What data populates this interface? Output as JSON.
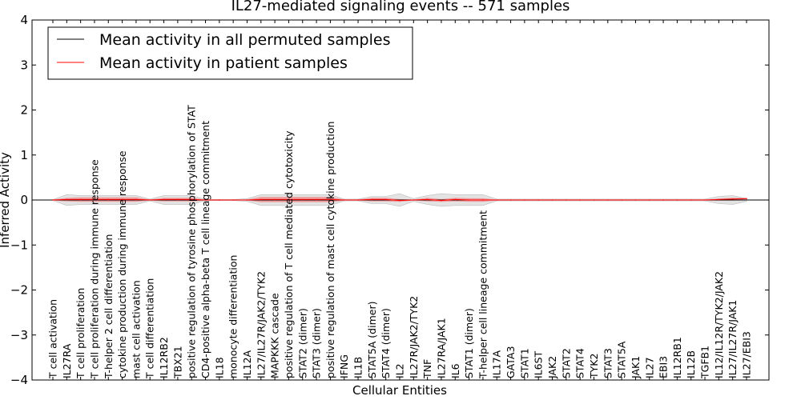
{
  "chart_data": {
    "type": "line",
    "title": "IL27-mediated signaling events -- 571 samples",
    "xlabel": "Cellular Entities",
    "ylabel": "Inferred Activity",
    "ylim": [
      -4,
      4
    ],
    "yticks": [
      -4,
      -3,
      -2,
      -1,
      0,
      1,
      2,
      3,
      4
    ],
    "ytick_labels": [
      "−4",
      "−3",
      "−2",
      "−1",
      "0",
      "1",
      "2",
      "3",
      "4"
    ],
    "legend": {
      "location": "top-left",
      "entries": [
        {
          "label": "Mean activity in all permuted samples",
          "color": "#000000"
        },
        {
          "label": "Mean activity in patient samples",
          "color": "#ff0000"
        }
      ]
    },
    "categories": [
      "T cell activation",
      "IL27RA",
      "T cell proliferation",
      "T cell proliferation during immune response",
      "T-helper 2 cell differentiation",
      "cytokine production during immune response",
      "mast cell activation",
      "T cell differentiation",
      "IL12RB2",
      "TBX21",
      "positive regulation of tyrosine phosphorylation of STAT",
      "CD4-positive alpha-beta T cell lineage commitment",
      "IL18",
      "monocyte differentiation",
      "IL12A",
      "IL27/IL27R/JAK2/TYK2",
      "MAPKKK cascade",
      "positive regulation of T cell mediated cytotoxicity",
      "STAT2 (dimer)",
      "STAT3 (dimer)",
      "positive regulation of mast cell cytokine production",
      "IFNG",
      "IL1B",
      "STAT5A (dimer)",
      "STAT4 (dimer)",
      "IL2",
      "IL27R/JAK2/TYK2",
      "TNF",
      "IL27RA/JAK1",
      "IL6",
      "STAT1 (dimer)",
      "T-helper cell lineage commitment",
      "IL17A",
      "GATA3",
      "STAT1",
      "IL6ST",
      "JAK2",
      "STAT2",
      "STAT4",
      "TYK2",
      "STAT3",
      "STAT5A",
      "JAK1",
      "IL27",
      "EBI3",
      "IL12RB1",
      "IL12B",
      "TGFB1",
      "IL12/IL12R/TYK2/JAK2",
      "IL27/IL27R/JAK1",
      "IL27/EBI3"
    ],
    "series": [
      {
        "name": "Mean activity in all permuted samples",
        "color": "#000000",
        "values": [
          0,
          0,
          0,
          0,
          0,
          0,
          0,
          0,
          0,
          0,
          0,
          0,
          0,
          0,
          0,
          0,
          0,
          0,
          0,
          0,
          0,
          0,
          0,
          0,
          0,
          0,
          0,
          0,
          0,
          0,
          0,
          0,
          0,
          0,
          0,
          0,
          0,
          0,
          0,
          0,
          0,
          0,
          0,
          0,
          0,
          0,
          0,
          0,
          0,
          0,
          0
        ]
      },
      {
        "name": "Mean activity in patient samples",
        "color": "#ff0000",
        "values": [
          0,
          0.01,
          0.01,
          0.01,
          0.01,
          0.01,
          0.01,
          0,
          0.01,
          0.01,
          0.01,
          0,
          0,
          0,
          0,
          0.01,
          0.01,
          0.01,
          0.01,
          0.01,
          0.01,
          0,
          0,
          0.01,
          0.01,
          -0.01,
          0,
          0.01,
          -0.01,
          0.01,
          0,
          0,
          0,
          0,
          0,
          0,
          0,
          0,
          0,
          0,
          0,
          0,
          0,
          0,
          0,
          0,
          0,
          0,
          0.01,
          0.02,
          0.03
        ]
      }
    ],
    "bands": {
      "patient_std": [
        0.01,
        0.04,
        0.05,
        0.05,
        0.05,
        0.05,
        0.05,
        0.01,
        0.04,
        0.04,
        0.04,
        0.01,
        0.01,
        0.01,
        0.01,
        0.06,
        0.06,
        0.06,
        0.06,
        0.06,
        0.06,
        0.01,
        0.01,
        0.04,
        0.04,
        0.03,
        0.01,
        0.04,
        0.03,
        0.04,
        0.04,
        0.04,
        0.01,
        0.01,
        0.01,
        0.01,
        0.01,
        0.01,
        0.01,
        0.01,
        0.01,
        0.01,
        0.01,
        0.01,
        0.01,
        0.01,
        0.01,
        0.01,
        0.02,
        0.03,
        0.01
      ],
      "permuted_range": [
        0.01,
        0.12,
        0.1,
        0.1,
        0.1,
        0.1,
        0.1,
        0.02,
        0.1,
        0.1,
        0.1,
        0.01,
        0.01,
        0.01,
        0.03,
        0.12,
        0.12,
        0.12,
        0.12,
        0.12,
        0.12,
        0.02,
        0.02,
        0.08,
        0.08,
        0.14,
        0.03,
        0.1,
        0.14,
        0.12,
        0.12,
        0.12,
        0.02,
        0.02,
        0.02,
        0.02,
        0.02,
        0.02,
        0.02,
        0.02,
        0.02,
        0.02,
        0.02,
        0.02,
        0.02,
        0.02,
        0.02,
        0.02,
        0.08,
        0.1,
        0.03
      ]
    },
    "zero_line": true
  }
}
